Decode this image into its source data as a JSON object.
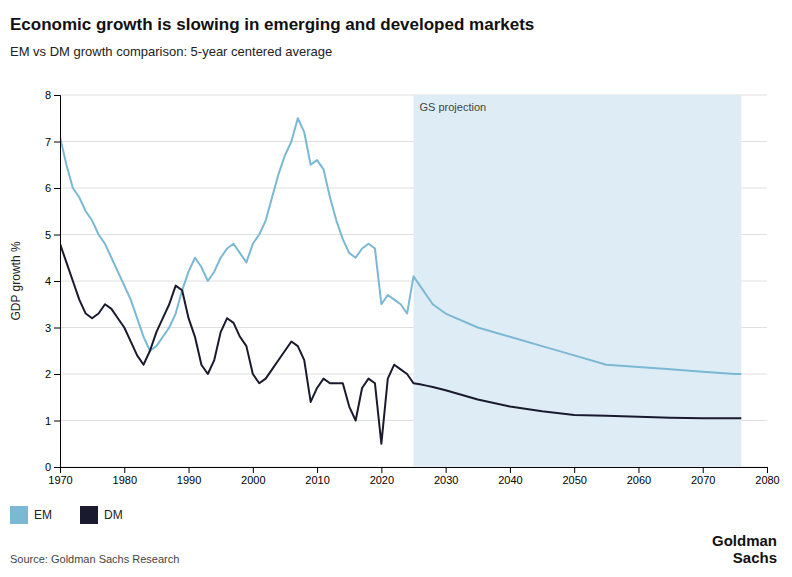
{
  "chart_data": {
    "type": "line",
    "title": "Economic growth is slowing in emerging and developed markets",
    "subtitle": "EM vs DM growth comparison: 5-year centered average",
    "ylabel": "GDP growth %",
    "source": "Source: Goldman Sachs Research",
    "annotations": [
      {
        "text": "GS projection",
        "x": [
          2025,
          2076
        ],
        "color": "#deedf5"
      },
      {
        "text": "Goldman\nSachs"
      }
    ],
    "x": [
      1970,
      1971,
      1972,
      1973,
      1974,
      1975,
      1976,
      1977,
      1978,
      1979,
      1980,
      1981,
      1982,
      1983,
      1984,
      1985,
      1986,
      1987,
      1988,
      1989,
      1990,
      1991,
      1992,
      1993,
      1994,
      1995,
      1996,
      1997,
      1998,
      1999,
      2000,
      2001,
      2002,
      2003,
      2004,
      2005,
      2006,
      2007,
      2008,
      2009,
      2010,
      2011,
      2012,
      2013,
      2014,
      2015,
      2016,
      2017,
      2018,
      2019,
      2020,
      2021,
      2022,
      2023,
      2024,
      2025,
      2026,
      2027,
      2028,
      2030,
      2035,
      2040,
      2045,
      2050,
      2055,
      2060,
      2065,
      2070,
      2075,
      2076
    ],
    "series": [
      {
        "name": "EM",
        "color": "#7bb8d4",
        "values": [
          7.1,
          6.5,
          6.0,
          5.8,
          5.5,
          5.3,
          5.0,
          4.8,
          4.5,
          4.2,
          3.9,
          3.6,
          3.2,
          2.8,
          2.5,
          2.6,
          2.8,
          3.0,
          3.3,
          3.8,
          4.2,
          4.5,
          4.3,
          4.0,
          4.2,
          4.5,
          4.7,
          4.8,
          4.6,
          4.4,
          4.8,
          5.0,
          5.3,
          5.8,
          6.3,
          6.7,
          7.0,
          7.5,
          7.2,
          6.5,
          6.6,
          6.4,
          5.8,
          5.3,
          4.9,
          4.6,
          4.5,
          4.7,
          4.8,
          4.7,
          3.5,
          3.7,
          3.6,
          3.5,
          3.3,
          4.1,
          3.9,
          3.7,
          3.5,
          3.3,
          3.0,
          2.8,
          2.6,
          2.4,
          2.2,
          2.15,
          2.1,
          2.05,
          2.0,
          2.0
        ]
      },
      {
        "name": "DM",
        "color": "#1a1a2e",
        "values": [
          4.8,
          4.4,
          4.0,
          3.6,
          3.3,
          3.2,
          3.3,
          3.5,
          3.4,
          3.2,
          3.0,
          2.7,
          2.4,
          2.2,
          2.5,
          2.9,
          3.2,
          3.5,
          3.9,
          3.8,
          3.2,
          2.8,
          2.2,
          2.0,
          2.3,
          2.9,
          3.2,
          3.1,
          2.8,
          2.6,
          2.0,
          1.8,
          1.9,
          2.1,
          2.3,
          2.5,
          2.7,
          2.6,
          2.3,
          1.4,
          1.7,
          1.9,
          1.8,
          1.8,
          1.8,
          1.3,
          1.0,
          1.7,
          1.9,
          1.8,
          0.5,
          1.9,
          2.2,
          2.1,
          2.0,
          1.8,
          1.78,
          1.75,
          1.72,
          1.65,
          1.45,
          1.3,
          1.2,
          1.12,
          1.1,
          1.08,
          1.06,
          1.05,
          1.05,
          1.05
        ]
      }
    ],
    "xlim": [
      1970,
      2080
    ],
    "ylim": [
      0,
      8
    ],
    "xticks": [
      1970,
      1980,
      1990,
      2000,
      2010,
      2020,
      2030,
      2040,
      2050,
      2060,
      2070,
      2080
    ],
    "yticks": [
      0,
      1,
      2,
      3,
      4,
      5,
      6,
      7,
      8
    ],
    "grid": true,
    "legend": "bottom"
  }
}
